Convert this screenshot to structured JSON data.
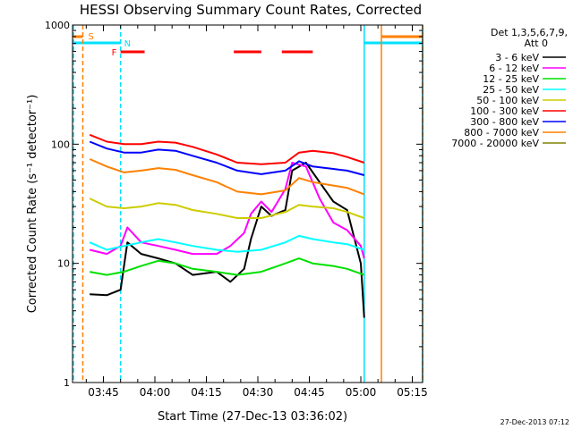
{
  "colors": {
    "3-6": "#000000",
    "6-12": "#ff00ff",
    "12-25": "#00e000",
    "25-50": "#00ffff",
    "50-100": "#cccc00",
    "100-300": "#ff0000",
    "300-800": "#0000ff",
    "800-7000": "#ff8000",
    "7000-20000": "#808000",
    "saa": "#ff8000",
    "night": "#00e0ff",
    "flare": "#ff0000"
  },
  "chart_data": {
    "type": "line",
    "title": "HESSI Observing Summary Count Rates, Corrected",
    "xlabel": "Start Time (27-Dec-13 03:36:02)",
    "ylabel": "Corrected Count Rate (s⁻¹ detector⁻¹)",
    "ylog": true,
    "ylim": [
      1,
      1000
    ],
    "xlim_minutes": [
      0,
      102
    ],
    "x_ticks": [
      "03:45",
      "04:00",
      "04:15",
      "04:30",
      "04:45",
      "05:00",
      "05:15"
    ],
    "y_ticks": [
      "1",
      "10",
      "100",
      "1000"
    ],
    "legend_header": [
      "Det 1,3,5,6,7,9,",
      "Att 0"
    ],
    "legend_position": "right",
    "timestamp": "27-Dec-2013 07:12",
    "flags": {
      "saa_label": "S",
      "night_label": "N",
      "flare_label": "F",
      "saa_intervals_min": [
        [
          0,
          3
        ],
        [
          90,
          102
        ]
      ],
      "night_intervals_min": [
        [
          0,
          14
        ],
        [
          85,
          102
        ]
      ],
      "flare_intervals_min": [
        [
          14,
          21
        ],
        [
          47,
          55
        ],
        [
          61,
          70
        ]
      ]
    },
    "series": [
      {
        "name": "3 - 6 keV",
        "key": "3-6",
        "x": [
          5,
          10,
          14,
          16,
          20,
          25,
          30,
          35,
          42,
          46,
          50,
          52,
          55,
          58,
          62,
          64,
          68,
          72,
          76,
          80,
          84,
          85
        ],
        "y": [
          5.5,
          5.4,
          6,
          15,
          12,
          11,
          10,
          8,
          8.5,
          7,
          9,
          16,
          30,
          25,
          28,
          60,
          70,
          48,
          33,
          28,
          10,
          3.5
        ]
      },
      {
        "name": "6 - 12 keV",
        "key": "6-12",
        "x": [
          5,
          10,
          14,
          16,
          20,
          25,
          30,
          35,
          42,
          46,
          50,
          52,
          55,
          58,
          62,
          64,
          68,
          72,
          76,
          80,
          84,
          85
        ],
        "y": [
          13,
          12,
          14,
          20,
          15,
          14,
          13,
          12,
          12,
          14,
          18,
          26,
          33,
          27,
          42,
          70,
          65,
          35,
          22,
          19,
          14,
          11
        ]
      },
      {
        "name": "12 - 25 keV",
        "key": "12-25",
        "x": [
          5,
          10,
          15,
          20,
          25,
          30,
          35,
          42,
          48,
          55,
          62,
          66,
          70,
          76,
          80,
          85
        ],
        "y": [
          8.5,
          8,
          8.5,
          9.5,
          10.5,
          10,
          9,
          8.5,
          8,
          8.5,
          10,
          11,
          10,
          9.5,
          9,
          8
        ]
      },
      {
        "name": "25 - 50 keV",
        "key": "25-50",
        "x": [
          5,
          10,
          15,
          20,
          25,
          30,
          35,
          42,
          48,
          55,
          62,
          66,
          70,
          76,
          80,
          85
        ],
        "y": [
          15,
          13,
          14,
          15,
          16,
          15,
          14,
          13,
          12.5,
          13,
          15,
          17,
          16,
          15,
          14.5,
          13
        ]
      },
      {
        "name": "50 - 100 keV",
        "key": "50-100",
        "x": [
          5,
          10,
          15,
          20,
          25,
          30,
          35,
          42,
          48,
          55,
          62,
          66,
          70,
          76,
          80,
          85
        ],
        "y": [
          35,
          30,
          29,
          30,
          32,
          31,
          28,
          26,
          24,
          24,
          27,
          31,
          30,
          29,
          27,
          24
        ]
      },
      {
        "name": "100 - 300 keV",
        "key": "100-300",
        "x": [
          5,
          10,
          15,
          20,
          25,
          30,
          35,
          42,
          48,
          55,
          62,
          66,
          70,
          76,
          80,
          85
        ],
        "y": [
          120,
          105,
          100,
          100,
          105,
          103,
          95,
          82,
          70,
          68,
          70,
          85,
          88,
          84,
          78,
          70
        ]
      },
      {
        "name": "300 - 800 keV",
        "key": "300-800",
        "x": [
          5,
          10,
          15,
          20,
          25,
          30,
          35,
          42,
          48,
          55,
          62,
          66,
          70,
          76,
          80,
          85
        ],
        "y": [
          105,
          92,
          85,
          85,
          90,
          88,
          80,
          70,
          60,
          56,
          60,
          72,
          65,
          62,
          60,
          55
        ]
      },
      {
        "name": "800 - 7000 keV",
        "key": "800-7000",
        "x": [
          5,
          10,
          15,
          20,
          25,
          30,
          35,
          42,
          48,
          55,
          62,
          66,
          70,
          76,
          80,
          85
        ],
        "y": [
          75,
          65,
          58,
          60,
          63,
          61,
          55,
          48,
          40,
          38,
          41,
          52,
          48,
          45,
          43,
          38
        ]
      },
      {
        "name": "7000 - 20000 keV",
        "key": "7000-20000",
        "x": [],
        "y": []
      }
    ]
  }
}
